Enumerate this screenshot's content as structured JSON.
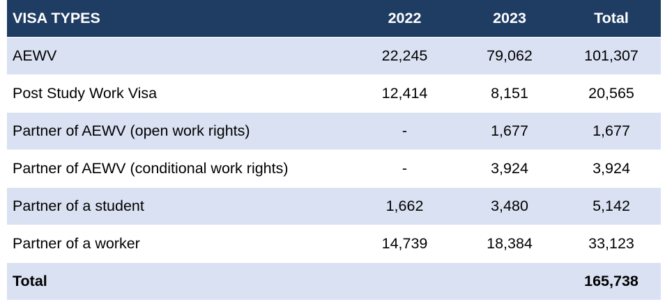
{
  "table": {
    "headers": [
      "VISA TYPES",
      "2022",
      "2023",
      "Total"
    ],
    "rows": [
      [
        "AEWV",
        "22,245",
        "79,062",
        "101,307"
      ],
      [
        "Post Study Work Visa",
        "12,414",
        "8,151",
        "20,565"
      ],
      [
        "Partner of AEWV (open work rights)",
        "-",
        "1,677",
        "1,677"
      ],
      [
        "Partner of AEWV (conditional work rights)",
        "-",
        "3,924",
        "3,924"
      ],
      [
        "Partner of a student",
        "1,662",
        "3,480",
        "5,142"
      ],
      [
        "Partner of a worker",
        "14,739",
        "18,384",
        "33,123"
      ]
    ],
    "total_row": [
      "Total",
      "",
      "",
      "165,738"
    ]
  },
  "colors": {
    "header_background": "#1f3d63",
    "header_text": "#ffffff",
    "stripe_background": "#d9e1f2",
    "plain_background": "#ffffff"
  }
}
